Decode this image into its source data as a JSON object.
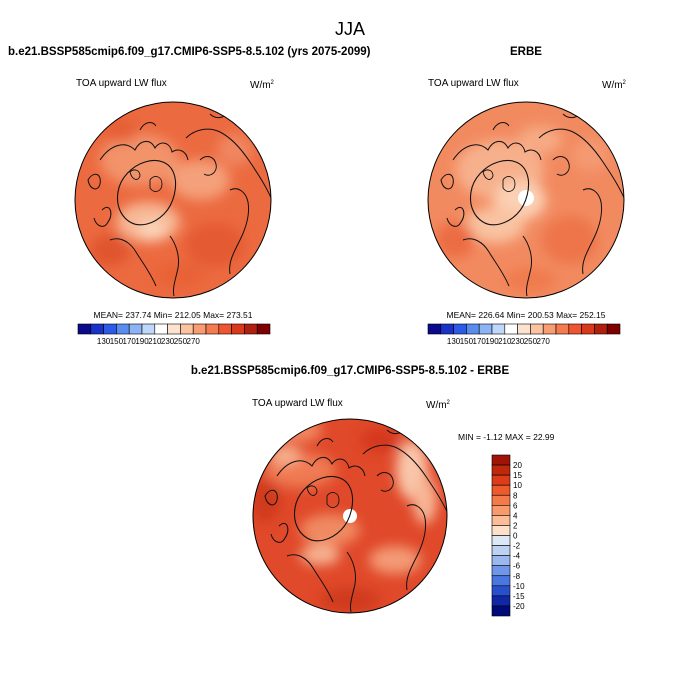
{
  "chart_data": {
    "type": "map",
    "title": "JJA",
    "panels": [
      {
        "id": "model",
        "title": "b.e21.BSSP585cmip6.f09_g17.CMIP6-SSP5-8.5.102 (yrs 2075-2099)",
        "variable": "TOA upward LW flux",
        "units": "W/m",
        "units_sup": "2",
        "stats": "MEAN= 237.74  Min= 212.05  Max= 273.51",
        "colorbar": {
          "orientation": "horizontal",
          "labels": [
            "130",
            "150",
            "170",
            "190",
            "210",
            "230",
            "250",
            "270"
          ],
          "colors": [
            "#0a0a8c",
            "#1932c8",
            "#2d5ae6",
            "#5a8cf0",
            "#8cb4f5",
            "#bed7fa",
            "#ffffff",
            "#fde3cf",
            "#fbc3a0",
            "#f89c73",
            "#f47a4f",
            "#ef5530",
            "#d93a1c",
            "#b02010",
            "#800000"
          ]
        }
      },
      {
        "id": "obs",
        "title": "ERBE",
        "variable": "TOA upward LW flux",
        "units": "W/m",
        "units_sup": "2",
        "stats": "MEAN= 226.64  Min= 200.53  Max= 252.15",
        "colorbar": {
          "orientation": "horizontal",
          "labels": [
            "130",
            "150",
            "170",
            "190",
            "210",
            "230",
            "250",
            "270"
          ],
          "colors": [
            "#0a0a8c",
            "#1932c8",
            "#2d5ae6",
            "#5a8cf0",
            "#8cb4f5",
            "#bed7fa",
            "#ffffff",
            "#fde3cf",
            "#fbc3a0",
            "#f89c73",
            "#f47a4f",
            "#ef5530",
            "#d93a1c",
            "#b02010",
            "#800000"
          ]
        }
      },
      {
        "id": "diff",
        "title": "b.e21.BSSP585cmip6.f09_g17.CMIP6-SSP5-8.5.102 - ERBE",
        "variable": "TOA upward LW flux",
        "units": "W/m",
        "units_sup": "2",
        "stats": "MIN =  -1.12 MAX =  22.99",
        "colorbar": {
          "orientation": "vertical",
          "labels": [
            "20",
            "15",
            "10",
            "8",
            "6",
            "4",
            "2",
            "0",
            "-2",
            "-4",
            "-6",
            "-8",
            "-10",
            "-15",
            "-20"
          ],
          "colors": [
            "#a01408",
            "#c0280e",
            "#dc3c1a",
            "#ee5a2c",
            "#f47a4a",
            "#f89a6c",
            "#fbbc96",
            "#fde0c8",
            "#dde8f7",
            "#bcd2f3",
            "#9ab8ef",
            "#6f96ea",
            "#4a76e2",
            "#2850cc",
            "#1028a8",
            "#000a78"
          ]
        }
      }
    ]
  }
}
